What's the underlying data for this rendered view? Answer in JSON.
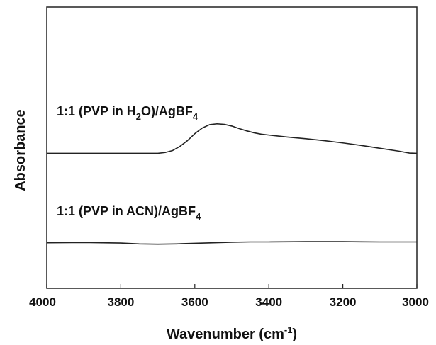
{
  "chart_data": {
    "type": "line",
    "xlabel": "Wavenumber (cm",
    "xlabel_sup": "-1",
    "xlabel_end": ")",
    "ylabel": "Absorbance",
    "xlim": [
      4000,
      3000
    ],
    "x_reversed": true,
    "ylim": [
      0,
      1
    ],
    "y_ticks_shown": false,
    "grid": false,
    "x_ticks": [
      "4000",
      "3800",
      "3600",
      "3400",
      "3200",
      "3000"
    ],
    "series": [
      {
        "label_main": "1:1 (PVP in H",
        "label_sub1": "2",
        "label_mid": "O)/AgBF",
        "label_sub2": "4",
        "color": "#222222",
        "x": [
          4000,
          3900,
          3800,
          3700,
          3680,
          3660,
          3640,
          3620,
          3600,
          3580,
          3560,
          3540,
          3520,
          3500,
          3480,
          3460,
          3440,
          3420,
          3400,
          3350,
          3300,
          3250,
          3200,
          3150,
          3100,
          3050,
          3020,
          3000
        ],
        "y": [
          0.48,
          0.48,
          0.48,
          0.48,
          0.483,
          0.49,
          0.505,
          0.525,
          0.55,
          0.57,
          0.582,
          0.585,
          0.583,
          0.577,
          0.568,
          0.56,
          0.553,
          0.548,
          0.545,
          0.538,
          0.532,
          0.525,
          0.517,
          0.508,
          0.498,
          0.488,
          0.481,
          0.48
        ]
      },
      {
        "label_main": "1:1 (PVP in ACN)/AgBF",
        "label_sub1": "",
        "label_mid": "",
        "label_sub2": "4",
        "color": "#222222",
        "x": [
          4000,
          3900,
          3800,
          3750,
          3700,
          3650,
          3600,
          3550,
          3500,
          3450,
          3400,
          3300,
          3200,
          3100,
          3000
        ],
        "y": [
          0.162,
          0.163,
          0.161,
          0.158,
          0.157,
          0.158,
          0.16,
          0.162,
          0.164,
          0.165,
          0.165,
          0.166,
          0.166,
          0.165,
          0.165
        ]
      }
    ]
  }
}
